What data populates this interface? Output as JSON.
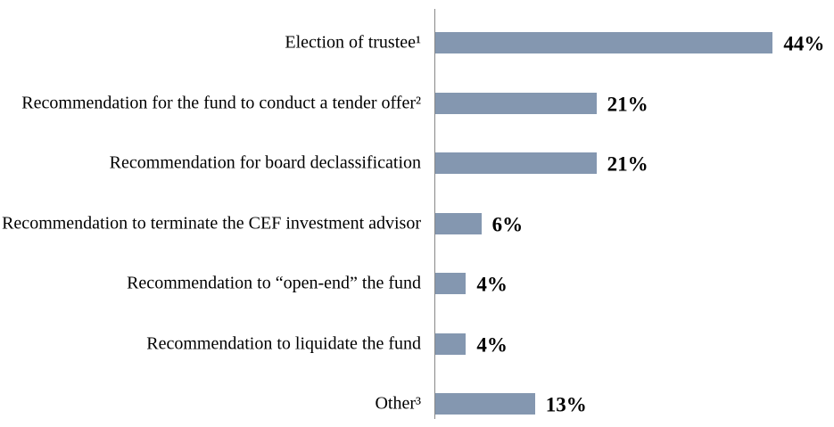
{
  "chart_data": {
    "type": "bar",
    "orientation": "horizontal",
    "categories": [
      "Election of trustee¹",
      "Recommendation for the fund to conduct a tender offer²",
      "Recommendation for board declassification",
      "Recommendation to terminate the CEF investment advisor",
      "Recommendation to “open-end” the fund",
      "Recommendation to liquidate the fund",
      "Other³"
    ],
    "values": [
      44,
      21,
      21,
      6,
      4,
      4,
      13
    ],
    "value_labels": [
      "44%",
      "21%",
      "21%",
      "6%",
      "4%",
      "4%",
      "13%"
    ],
    "color": "#8497b0"
  }
}
